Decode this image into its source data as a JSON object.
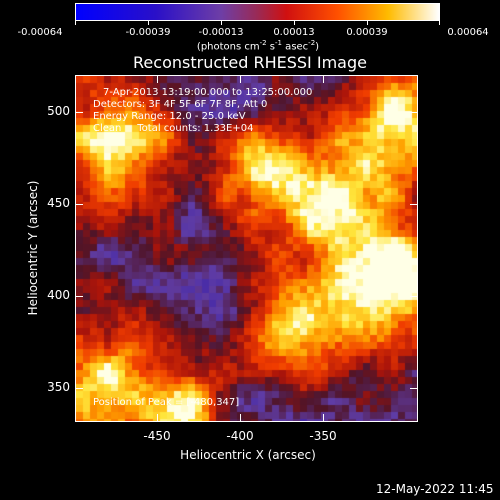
{
  "colorbar": {
    "colors": [
      "#0000ff",
      "#3b1fb8",
      "#6e3ea6",
      "#b02030",
      "#ff1a00",
      "#ff7a00",
      "#ffcc00",
      "#ffffff"
    ],
    "tick_labels": [
      "-0.00064",
      "-0.00039",
      "-0.00013",
      "0.00013",
      "0.00039",
      "0.00064"
    ],
    "units_text": "(photons cm",
    "units_exp1": "-2",
    "units_mid": " s",
    "units_exp2": "-1",
    "units_end": " asec",
    "units_exp3": "-2",
    "units_close": ")"
  },
  "title": "Reconstructed RHESSI Image",
  "info": {
    "line1": "7-Apr-2013 13:19:00.000 to 13:25:00.000",
    "line2": "Detectors: 3F 4F 5F 6F 7F 8F, Att 0",
    "line3": "Energy Range: 12.0 - 25.0 keV",
    "line4": "Clean     Total counts: 1.33E+04",
    "peak": "Position of Peak = [-480,347]"
  },
  "axes": {
    "ylabel": "Heliocentric Y (arcsec)",
    "xlabel": "Heliocentric X (arcsec)",
    "y_ticks": [
      "500",
      "450",
      "400",
      "350"
    ],
    "x_ticks": [
      "-450",
      "-400",
      "-350"
    ],
    "xlim": [
      -496,
      -307
    ],
    "ylim": [
      330,
      522
    ]
  },
  "timestamp": "12-May-2022 11:45"
}
